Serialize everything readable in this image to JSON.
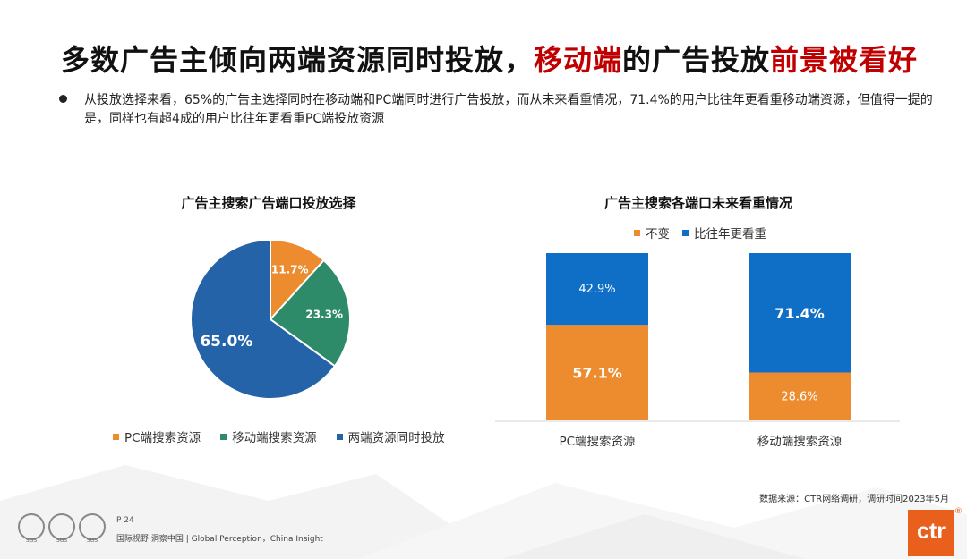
{
  "title": {
    "part1": "多数广告主倾向两端资源同时投放，",
    "highlight1": "移动端",
    "part2": "的广告投放",
    "highlight2": "前景被看好"
  },
  "bullet": "从投放选择来看，65%的广告主选择同时在移动端和PC端同时进行广告投放，而从未来看重情况，71.4%的用户比往年更看重移动端资源，但值得一提的是，同样也有超4成的用户比往年更看重PC端投放资源",
  "chart_data": [
    {
      "type": "pie",
      "title": "广告主搜索广告端口投放选择",
      "legend_position": "bottom",
      "labels": [
        "PC端搜索资源",
        "移动端搜索资源",
        "两端资源同时投放"
      ],
      "values": [
        11.7,
        23.3,
        65.0
      ],
      "value_labels": [
        "11.7%",
        "23.3%",
        "65.0%"
      ],
      "colors": [
        "#ed8b2f",
        "#2e8b6a",
        "#2563a8"
      ]
    },
    {
      "type": "bar",
      "stacked": true,
      "title": "广告主搜索各端口未来看重情况",
      "legend_position": "top",
      "categories": [
        "PC端搜索资源",
        "移动端搜索资源"
      ],
      "series": [
        {
          "name": "不变",
          "values": [
            57.1,
            28.6
          ],
          "labels": [
            "57.1%",
            "28.6%"
          ],
          "color": "#ed8b2f"
        },
        {
          "name": "比往年更看重",
          "values": [
            42.9,
            71.4
          ],
          "labels": [
            "42.9%",
            "71.4%"
          ],
          "color": "#0f6fc6"
        }
      ],
      "ylim": [
        0,
        100
      ]
    }
  ],
  "footer": {
    "page": "P 24",
    "tagline": "国际视野 洞察中国 |  Global Perception，China Insight",
    "source": "数据来源：CTR网络调研，调研时间2023年5月",
    "cert_label": "SGS",
    "logo_text": "ctr",
    "logo_mark": "®"
  }
}
